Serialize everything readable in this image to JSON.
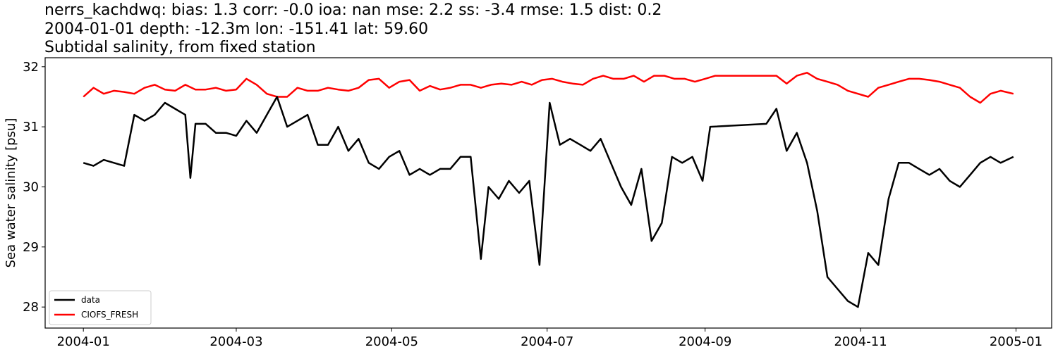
{
  "chart_data": {
    "type": "line",
    "title": "nerrs_kachdwq: bias: 1.3  corr: -0.0  ioa: nan  mse: 2.2  ss: -3.4  rmse: 1.5  dist: 0.2",
    "subtitle": "2004-01-01 depth: -12.3m lon: -151.41 lat: 59.60",
    "subtitle2": "Subtidal salinity, from fixed station",
    "xlabel": "",
    "ylabel": "Sea water salinity [psu]",
    "xlim": [
      "2003-12-17",
      "2005-01-15"
    ],
    "ylim": [
      27.65,
      32.15
    ],
    "xticks": [
      "2004-01",
      "2004-03",
      "2004-05",
      "2004-07",
      "2004-09",
      "2004-11",
      "2005-01"
    ],
    "yticks": [
      28,
      29,
      30,
      31,
      32
    ],
    "grid": false,
    "legend": "lower-left",
    "series": [
      {
        "name": "data",
        "color": "#000000",
        "x": [
          "2004-01-01",
          "2004-01-05",
          "2004-01-09",
          "2004-01-13",
          "2004-01-17",
          "2004-01-21",
          "2004-01-25",
          "2004-01-29",
          "2004-02-02",
          "2004-02-06",
          "2004-02-10",
          "2004-02-12",
          "2004-02-14",
          "2004-02-18",
          "2004-02-22",
          "2004-02-26",
          "2004-03-01",
          "2004-03-05",
          "2004-03-09",
          "2004-03-13",
          "2004-03-17",
          "2004-03-21",
          "2004-03-25",
          "2004-03-29",
          "2004-04-02",
          "2004-04-06",
          "2004-04-10",
          "2004-04-14",
          "2004-04-18",
          "2004-04-22",
          "2004-04-26",
          "2004-04-30",
          "2004-05-04",
          "2004-05-08",
          "2004-05-12",
          "2004-05-16",
          "2004-05-20",
          "2004-05-24",
          "2004-05-28",
          "2004-06-01",
          "2004-06-05",
          "2004-06-08",
          "2004-06-12",
          "2004-06-16",
          "2004-06-20",
          "2004-06-24",
          "2004-06-28",
          "2004-07-02",
          "2004-07-06",
          "2004-07-10",
          "2004-07-14",
          "2004-07-18",
          "2004-07-22",
          "2004-07-26",
          "2004-07-30",
          "2004-08-03",
          "2004-08-07",
          "2004-08-11",
          "2004-08-15",
          "2004-08-19",
          "2004-08-23",
          "2004-08-27",
          "2004-08-31",
          "2004-09-03",
          "2004-09-25",
          "2004-09-29",
          "2004-10-03",
          "2004-10-07",
          "2004-10-11",
          "2004-10-15",
          "2004-10-19",
          "2004-10-23",
          "2004-10-27",
          "2004-10-31",
          "2004-11-04",
          "2004-11-08",
          "2004-11-12",
          "2004-11-16",
          "2004-11-20",
          "2004-11-24",
          "2004-11-28",
          "2004-12-02",
          "2004-12-06",
          "2004-12-10",
          "2004-12-14",
          "2004-12-18",
          "2004-12-22",
          "2004-12-26",
          "2004-12-31"
        ],
        "values": [
          30.4,
          30.35,
          30.45,
          30.4,
          30.35,
          31.2,
          31.1,
          31.2,
          31.4,
          31.3,
          31.2,
          30.15,
          31.05,
          31.05,
          30.9,
          30.9,
          30.85,
          31.1,
          30.9,
          31.2,
          31.5,
          31.0,
          31.1,
          31.2,
          30.7,
          30.7,
          31.0,
          30.6,
          30.8,
          30.4,
          30.3,
          30.5,
          30.6,
          30.2,
          30.3,
          30.2,
          30.3,
          30.3,
          30.5,
          30.5,
          28.8,
          30.0,
          29.8,
          30.1,
          29.9,
          30.1,
          28.7,
          31.4,
          30.7,
          30.8,
          30.7,
          30.6,
          30.8,
          30.4,
          30.0,
          29.7,
          30.3,
          29.1,
          29.4,
          30.5,
          30.4,
          30.5,
          30.1,
          31.0,
          31.05,
          31.3,
          30.6,
          30.9,
          30.4,
          29.6,
          28.5,
          28.3,
          28.1,
          28.0,
          28.9,
          28.7,
          29.8,
          30.4,
          30.4,
          30.3,
          30.2,
          30.3,
          30.1,
          30.0,
          30.2,
          30.4,
          30.5,
          30.4,
          30.5
        ]
      },
      {
        "name": "CIOFS_FRESH",
        "color": "#ff0000",
        "x": [
          "2004-01-01",
          "2004-01-05",
          "2004-01-09",
          "2004-01-13",
          "2004-01-17",
          "2004-01-21",
          "2004-01-25",
          "2004-01-29",
          "2004-02-02",
          "2004-02-06",
          "2004-02-10",
          "2004-02-14",
          "2004-02-18",
          "2004-02-22",
          "2004-02-26",
          "2004-03-01",
          "2004-03-05",
          "2004-03-09",
          "2004-03-13",
          "2004-03-17",
          "2004-03-21",
          "2004-03-25",
          "2004-03-29",
          "2004-04-02",
          "2004-04-06",
          "2004-04-10",
          "2004-04-14",
          "2004-04-18",
          "2004-04-22",
          "2004-04-26",
          "2004-04-30",
          "2004-05-04",
          "2004-05-08",
          "2004-05-12",
          "2004-05-16",
          "2004-05-20",
          "2004-05-24",
          "2004-05-28",
          "2004-06-01",
          "2004-06-05",
          "2004-06-09",
          "2004-06-13",
          "2004-06-17",
          "2004-06-21",
          "2004-06-25",
          "2004-06-29",
          "2004-07-03",
          "2004-07-07",
          "2004-07-11",
          "2004-07-15",
          "2004-07-19",
          "2004-07-23",
          "2004-07-27",
          "2004-07-31",
          "2004-08-04",
          "2004-08-08",
          "2004-08-12",
          "2004-08-16",
          "2004-08-20",
          "2004-08-24",
          "2004-08-28",
          "2004-09-01",
          "2004-09-05",
          "2004-09-25",
          "2004-09-29",
          "2004-10-03",
          "2004-10-07",
          "2004-10-11",
          "2004-10-15",
          "2004-10-19",
          "2004-10-23",
          "2004-10-27",
          "2004-10-31",
          "2004-11-04",
          "2004-11-08",
          "2004-11-12",
          "2004-11-16",
          "2004-11-20",
          "2004-11-24",
          "2004-11-28",
          "2004-12-02",
          "2004-12-06",
          "2004-12-10",
          "2004-12-14",
          "2004-12-18",
          "2004-12-22",
          "2004-12-26",
          "2004-12-31"
        ],
        "values": [
          31.5,
          31.65,
          31.55,
          31.6,
          31.58,
          31.55,
          31.65,
          31.7,
          31.62,
          31.6,
          31.7,
          31.62,
          31.62,
          31.65,
          31.6,
          31.62,
          31.8,
          31.7,
          31.55,
          31.5,
          31.5,
          31.65,
          31.6,
          31.6,
          31.65,
          31.62,
          31.6,
          31.65,
          31.78,
          31.8,
          31.65,
          31.75,
          31.78,
          31.6,
          31.68,
          31.62,
          31.65,
          31.7,
          31.7,
          31.65,
          31.7,
          31.72,
          31.7,
          31.75,
          31.7,
          31.78,
          31.8,
          31.75,
          31.72,
          31.7,
          31.8,
          31.85,
          31.8,
          31.8,
          31.85,
          31.75,
          31.85,
          31.85,
          31.8,
          31.8,
          31.75,
          31.8,
          31.85,
          31.85,
          31.85,
          31.72,
          31.85,
          31.9,
          31.8,
          31.75,
          31.7,
          31.6,
          31.55,
          31.5,
          31.65,
          31.7,
          31.75,
          31.8,
          31.8,
          31.78,
          31.75,
          31.7,
          31.65,
          31.5,
          31.4,
          31.55,
          31.6,
          31.55
        ]
      }
    ]
  }
}
